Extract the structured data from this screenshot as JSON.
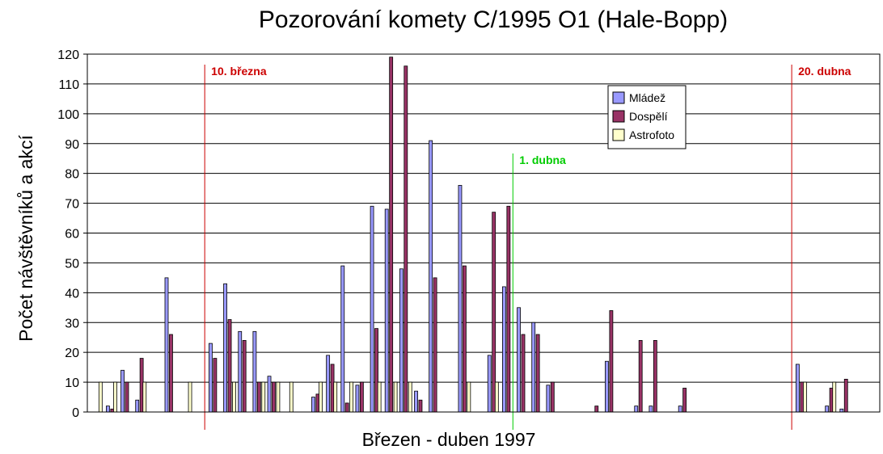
{
  "chart_data": {
    "type": "bar",
    "title": "Pozorování komety C/1995 O1 (Hale-Bopp)",
    "xlabel": "Březen - duben 1997",
    "ylabel": "Počet návštěvníků a akcí",
    "ylim": [
      0,
      120
    ],
    "yticks": [
      0,
      10,
      20,
      30,
      40,
      50,
      60,
      70,
      80,
      90,
      100,
      110,
      120
    ],
    "xlim": [
      0,
      54
    ],
    "grid": true,
    "legend_position": "top-right",
    "colors": {
      "Mládež": "#9999ff",
      "Dospělí": "#993366",
      "Astrofoto": "#ffffcc"
    },
    "series": [
      {
        "name": "Mládež",
        "points": [
          [
            1.4,
            2
          ],
          [
            2.4,
            14
          ],
          [
            3.4,
            4
          ],
          [
            5.4,
            45
          ],
          [
            8.4,
            23
          ],
          [
            9.4,
            43
          ],
          [
            10.4,
            27
          ],
          [
            11.4,
            27
          ],
          [
            12.4,
            12
          ],
          [
            15.4,
            5
          ],
          [
            16.4,
            19
          ],
          [
            17.4,
            49
          ],
          [
            18.4,
            9
          ],
          [
            19.4,
            69
          ],
          [
            20.4,
            68
          ],
          [
            21.4,
            48
          ],
          [
            22.4,
            7
          ],
          [
            23.4,
            91
          ],
          [
            25.4,
            76
          ],
          [
            27.4,
            19
          ],
          [
            28.4,
            42
          ],
          [
            29.4,
            35
          ],
          [
            30.4,
            30
          ],
          [
            31.4,
            9
          ],
          [
            35.4,
            17
          ],
          [
            37.4,
            2
          ],
          [
            38.4,
            2
          ],
          [
            40.4,
            2
          ],
          [
            48.4,
            16
          ],
          [
            50.4,
            2
          ],
          [
            51.4,
            1
          ]
        ]
      },
      {
        "name": "Dospělí",
        "points": [
          [
            1.7,
            1
          ],
          [
            2.7,
            10
          ],
          [
            3.7,
            18
          ],
          [
            5.7,
            26
          ],
          [
            8.7,
            18
          ],
          [
            9.7,
            31
          ],
          [
            10.7,
            24
          ],
          [
            11.7,
            10
          ],
          [
            12.7,
            10
          ],
          [
            15.7,
            6
          ],
          [
            16.7,
            16
          ],
          [
            17.7,
            3
          ],
          [
            18.7,
            10
          ],
          [
            19.7,
            28
          ],
          [
            20.7,
            119
          ],
          [
            21.7,
            116
          ],
          [
            22.7,
            4
          ],
          [
            23.7,
            45
          ],
          [
            25.7,
            49
          ],
          [
            27.7,
            67
          ],
          [
            28.7,
            69
          ],
          [
            29.7,
            26
          ],
          [
            30.7,
            26
          ],
          [
            31.7,
            10
          ],
          [
            34.7,
            2
          ],
          [
            35.7,
            34
          ],
          [
            37.7,
            24
          ],
          [
            38.7,
            24
          ],
          [
            40.7,
            8
          ],
          [
            48.7,
            10
          ],
          [
            50.7,
            8
          ],
          [
            51.7,
            11
          ]
        ]
      },
      {
        "name": "Astrofoto",
        "points": [
          [
            0.9,
            10
          ],
          [
            1.9,
            10
          ],
          [
            3.9,
            10
          ],
          [
            7.0,
            10
          ],
          [
            10.0,
            10
          ],
          [
            12.0,
            10
          ],
          [
            13.0,
            10
          ],
          [
            13.9,
            10
          ],
          [
            15.9,
            10
          ],
          [
            16.9,
            10
          ],
          [
            18.0,
            10
          ],
          [
            19.9,
            10
          ],
          [
            21.0,
            10
          ],
          [
            22.0,
            10
          ],
          [
            26.0,
            10
          ],
          [
            27.9,
            10
          ],
          [
            48.9,
            10
          ],
          [
            50.9,
            10
          ]
        ]
      }
    ],
    "annotations": [
      {
        "text": "10. března",
        "x": 8.0,
        "color": "#cc0000"
      },
      {
        "text": "1. dubna",
        "x": 29.0,
        "color": "#00cc00"
      },
      {
        "text": "20. dubna",
        "x": 48.0,
        "color": "#cc0000"
      }
    ]
  }
}
